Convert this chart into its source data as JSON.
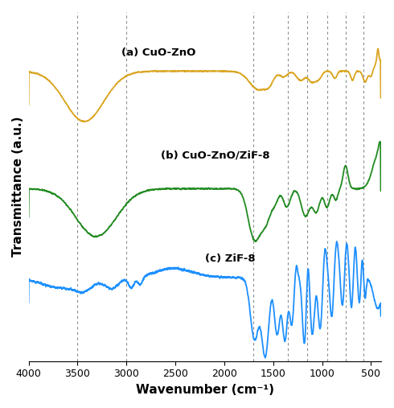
{
  "xlabel": "Wavenumber (cm⁻¹)",
  "ylabel": "Transmittance (a.u.)",
  "colors": {
    "CuO_ZnO": "#DAA520",
    "CuO_ZnO_ZiF8": "#228B22",
    "ZiF8": "#1E90FF"
  },
  "labels": {
    "CuO_ZnO": "(a) CuO-ZnO",
    "CuO_ZnO_ZiF8": "(b) CuO-ZnO/ZiF-8",
    "ZiF8": "(c) ZiF-8"
  },
  "label_positions": {
    "CuO_ZnO": [
      3100,
      0.88
    ],
    "CuO_ZnO_ZiF8": [
      2700,
      0.57
    ],
    "ZiF8": [
      2400,
      0.3
    ]
  },
  "vlines": [
    3500,
    3000,
    1700,
    1350,
    1150,
    950,
    760,
    580
  ],
  "background": "#ffffff"
}
